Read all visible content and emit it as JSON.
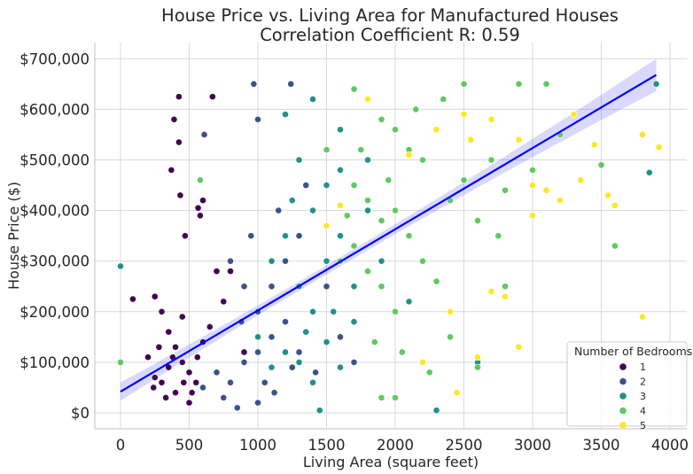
{
  "chart_data": {
    "type": "scatter",
    "title": "House Price vs. Living Area for Manufactured Houses",
    "subtitle": "Correlation Coefficient R: 0.59",
    "xlabel": "Living Area (square feet)",
    "ylabel": "House Price ($)",
    "xlim": [
      -200,
      4100
    ],
    "ylim": [
      -30000,
      730000
    ],
    "xticks": [
      0,
      500,
      1000,
      1500,
      2000,
      2500,
      3000,
      3500,
      4000
    ],
    "yticks": [
      0,
      100000,
      200000,
      300000,
      400000,
      500000,
      600000,
      700000
    ],
    "ytick_labels": [
      "$0",
      "$100,000",
      "$200,000",
      "$300,000",
      "$400,000",
      "$500,000",
      "$600,000",
      "$700,000"
    ],
    "grid": true,
    "legend": {
      "title": "Number of Bedrooms",
      "placement": "bottom-right"
    },
    "regression": {
      "x_range": [
        0,
        3900
      ],
      "intercept": 42000,
      "slope": 160.5,
      "ci_color": "#0000ff",
      "line_color": "#0000ff"
    },
    "series": [
      {
        "name": "1",
        "color": "#440154",
        "points_price_thousands": [
          [
            425,
            625
          ],
          [
            670,
            625
          ],
          [
            390,
            580
          ],
          [
            425,
            535
          ],
          [
            370,
            480
          ],
          [
            435,
            430
          ],
          [
            565,
            405
          ],
          [
            600,
            420
          ],
          [
            470,
            350
          ],
          [
            580,
            390
          ],
          [
            250,
            230
          ],
          [
            90,
            225
          ],
          [
            300,
            200
          ],
          [
            350,
            160
          ],
          [
            400,
            130
          ],
          [
            450,
            100
          ],
          [
            500,
            80
          ],
          [
            550,
            60
          ],
          [
            300,
            60
          ],
          [
            400,
            40
          ],
          [
            200,
            110
          ],
          [
            600,
            140
          ],
          [
            700,
            280
          ],
          [
            750,
            220
          ],
          [
            800,
            280
          ],
          [
            500,
            20
          ],
          [
            350,
            90
          ],
          [
            250,
            70
          ],
          [
            650,
            170
          ],
          [
            450,
            190
          ],
          [
            380,
            110
          ],
          [
            520,
            40
          ],
          [
            280,
            130
          ],
          [
            900,
            120
          ],
          [
            330,
            30
          ],
          [
            460,
            60
          ],
          [
            560,
            110
          ],
          [
            240,
            50
          ]
        ]
      },
      {
        "name": "2",
        "color": "#3b528b",
        "points_price_thousands": [
          [
            970,
            650
          ],
          [
            1240,
            650
          ],
          [
            1000,
            580
          ],
          [
            610,
            550
          ],
          [
            800,
            300
          ],
          [
            900,
            250
          ],
          [
            1000,
            200
          ],
          [
            1100,
            250
          ],
          [
            1200,
            300
          ],
          [
            1300,
            350
          ],
          [
            700,
            80
          ],
          [
            800,
            60
          ],
          [
            900,
            100
          ],
          [
            1000,
            120
          ],
          [
            1100,
            150
          ],
          [
            1200,
            180
          ],
          [
            1400,
            200
          ],
          [
            600,
            50
          ],
          [
            750,
            30
          ],
          [
            850,
            10
          ],
          [
            1050,
            60
          ],
          [
            1300,
            120
          ],
          [
            1500,
            250
          ],
          [
            950,
            350
          ],
          [
            1150,
            400
          ],
          [
            1350,
            450
          ],
          [
            1600,
            150
          ],
          [
            1700,
            100
          ],
          [
            1000,
            20
          ],
          [
            1250,
            90
          ],
          [
            880,
            180
          ],
          [
            1120,
            40
          ],
          [
            1420,
            80
          ]
        ]
      },
      {
        "name": "3",
        "color": "#21918c",
        "points_price_thousands": [
          [
            0,
            290
          ],
          [
            1200,
            590
          ],
          [
            1400,
            620
          ],
          [
            1600,
            560
          ],
          [
            1300,
            500
          ],
          [
            1400,
            400
          ],
          [
            1500,
            450
          ],
          [
            1600,
            480
          ],
          [
            1100,
            300
          ],
          [
            1200,
            350
          ],
          [
            1300,
            250
          ],
          [
            1400,
            200
          ],
          [
            1500,
            300
          ],
          [
            1600,
            350
          ],
          [
            1700,
            250
          ],
          [
            1800,
            400
          ],
          [
            1900,
            300
          ],
          [
            1200,
            120
          ],
          [
            1300,
            100
          ],
          [
            1400,
            60
          ],
          [
            1500,
            140
          ],
          [
            1600,
            90
          ],
          [
            1700,
            180
          ],
          [
            1100,
            90
          ],
          [
            1000,
            150
          ],
          [
            2300,
            5
          ],
          [
            3850,
            475
          ],
          [
            3900,
            650
          ],
          [
            2600,
            100
          ],
          [
            2100,
            220
          ],
          [
            1450,
            5
          ],
          [
            1800,
            500
          ],
          [
            1250,
            420
          ],
          [
            1550,
            200
          ],
          [
            1350,
            160
          ]
        ]
      },
      {
        "name": "4",
        "color": "#5ec962",
        "points_price_thousands": [
          [
            0,
            100
          ],
          [
            580,
            460
          ],
          [
            1700,
            640
          ],
          [
            1800,
            620
          ],
          [
            1900,
            580
          ],
          [
            2000,
            560
          ],
          [
            2100,
            520
          ],
          [
            2200,
            500
          ],
          [
            1700,
            450
          ],
          [
            1800,
            420
          ],
          [
            1900,
            380
          ],
          [
            2000,
            400
          ],
          [
            2100,
            350
          ],
          [
            1600,
            300
          ],
          [
            1700,
            330
          ],
          [
            1800,
            280
          ],
          [
            1900,
            250
          ],
          [
            2000,
            200
          ],
          [
            2200,
            300
          ],
          [
            2300,
            260
          ],
          [
            2400,
            420
          ],
          [
            2500,
            460
          ],
          [
            2600,
            380
          ],
          [
            2700,
            500
          ],
          [
            2800,
            440
          ],
          [
            2900,
            650
          ],
          [
            3100,
            650
          ],
          [
            3200,
            550
          ],
          [
            3500,
            490
          ],
          [
            3600,
            330
          ],
          [
            2500,
            650
          ],
          [
            2600,
            90
          ],
          [
            2400,
            150
          ],
          [
            1900,
            30
          ],
          [
            2000,
            30
          ],
          [
            2250,
            80
          ],
          [
            1500,
            520
          ],
          [
            1750,
            520
          ],
          [
            2150,
            600
          ],
          [
            2350,
            620
          ],
          [
            2800,
            250
          ],
          [
            2750,
            350
          ],
          [
            3000,
            480
          ],
          [
            2050,
            120
          ],
          [
            1850,
            140
          ],
          [
            1950,
            460
          ],
          [
            1650,
            390
          ]
        ]
      },
      {
        "name": "5",
        "color": "#fde725",
        "points_price_thousands": [
          [
            1800,
            620
          ],
          [
            2100,
            510
          ],
          [
            2300,
            560
          ],
          [
            2500,
            590
          ],
          [
            2700,
            580
          ],
          [
            2900,
            540
          ],
          [
            3000,
            450
          ],
          [
            3100,
            440
          ],
          [
            3200,
            420
          ],
          [
            3300,
            590
          ],
          [
            3450,
            530
          ],
          [
            3550,
            430
          ],
          [
            3800,
            550
          ],
          [
            3920,
            525
          ],
          [
            3800,
            190
          ],
          [
            3600,
            410
          ],
          [
            2900,
            130
          ],
          [
            2600,
            110
          ],
          [
            2450,
            40
          ],
          [
            2200,
            100
          ],
          [
            2400,
            200
          ],
          [
            2700,
            240
          ],
          [
            2800,
            230
          ],
          [
            3000,
            390
          ],
          [
            2550,
            540
          ],
          [
            1500,
            370
          ],
          [
            1600,
            410
          ],
          [
            3350,
            460
          ]
        ]
      }
    ]
  }
}
